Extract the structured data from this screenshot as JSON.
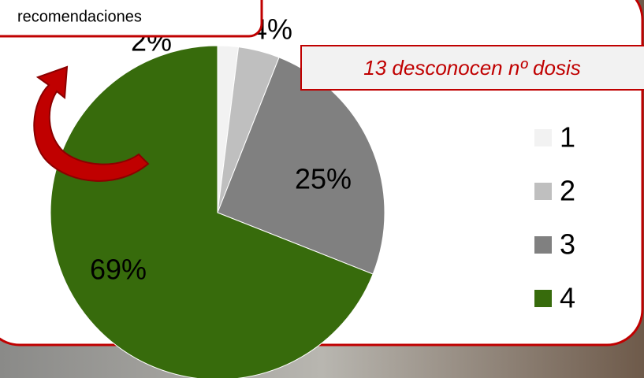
{
  "chart_data": {
    "type": "pie",
    "categories": [
      "1",
      "2",
      "3",
      "4"
    ],
    "values": [
      2,
      4,
      25,
      69
    ],
    "value_labels": [
      "2%",
      "4%",
      "25%",
      "69%"
    ],
    "colors": [
      "#f2f2f2",
      "#bfbfbf",
      "#808080",
      "#376b0c"
    ],
    "annotation": "13 desconocen nº dosis",
    "callout": "recomendaciones",
    "legend": "right"
  }
}
